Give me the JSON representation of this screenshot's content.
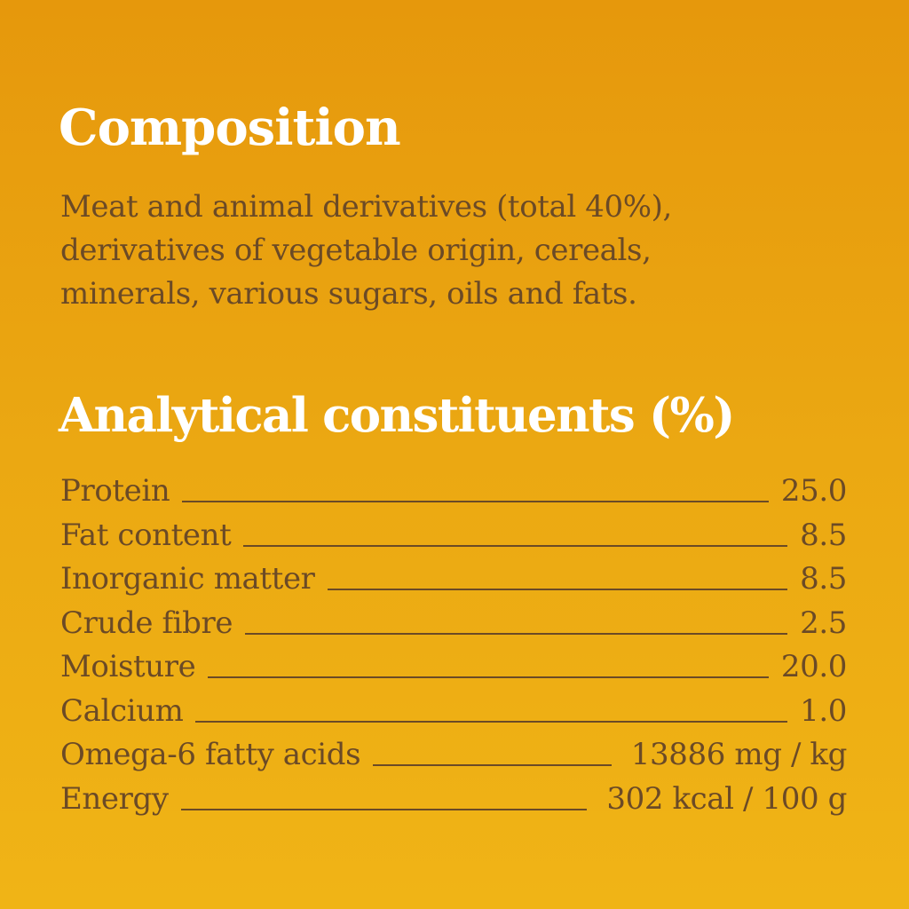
{
  "composition": {
    "title": "Composition",
    "lines": [
      "Meat and animal derivatives (total 40%),",
      "derivatives of vegetable origin, cereals,",
      "minerals, various sugars, oils and fats."
    ]
  },
  "analytical": {
    "title": "Analytical constituents (%)",
    "rows": [
      {
        "label": "Protein",
        "value": "25.0"
      },
      {
        "label": "Fat content",
        "value": "8.5"
      },
      {
        "label": "Inorganic matter",
        "value": "8.5"
      },
      {
        "label": "Crude fibre",
        "value": "2.5"
      },
      {
        "label": "Moisture",
        "value": "20.0"
      },
      {
        "label": "Calcium",
        "value": "1.0"
      },
      {
        "label": "Omega-6 fatty acids",
        "value": "13886 mg / kg"
      },
      {
        "label": "Energy",
        "value": "302 kcal / 100 g"
      }
    ]
  },
  "colors": {
    "background_top": "#e6980c",
    "background_bottom": "#f0b416",
    "heading": "#ffffff",
    "body_text": "#6b4a26"
  }
}
